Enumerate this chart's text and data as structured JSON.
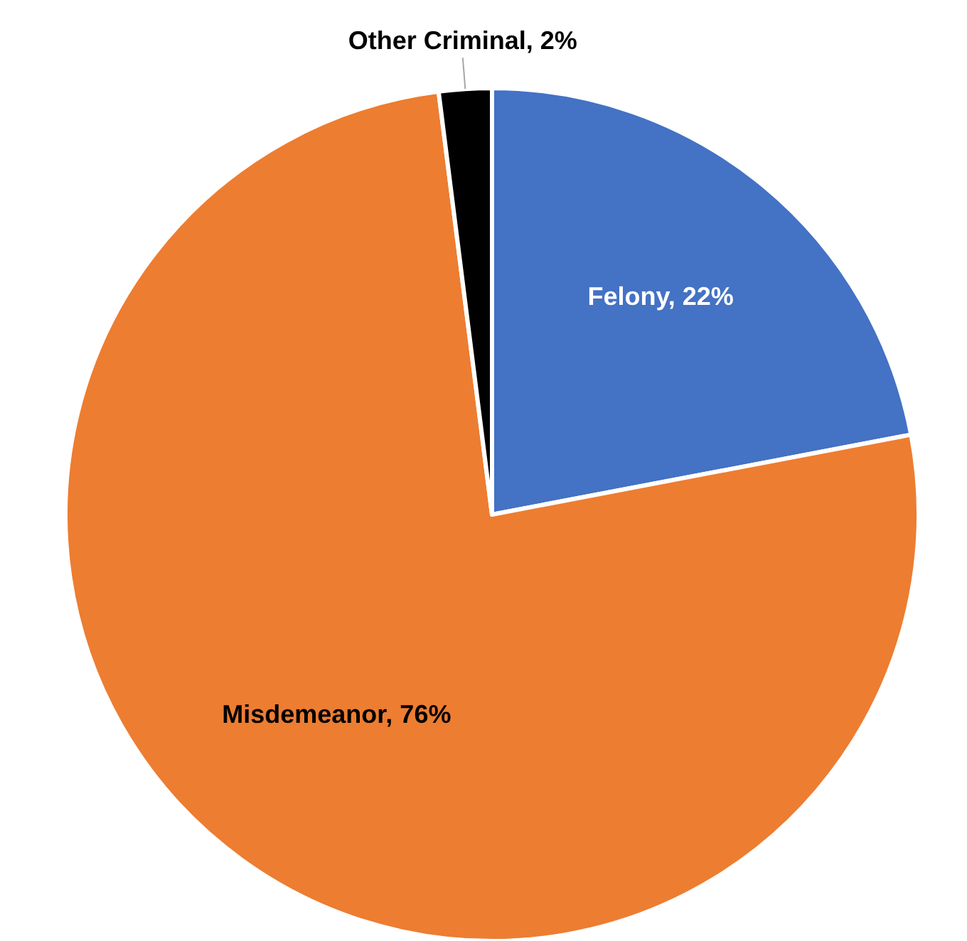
{
  "chart_data": {
    "type": "pie",
    "categories": [
      "Felony",
      "Misdemeanor",
      "Other Criminal"
    ],
    "values": [
      22,
      76,
      2
    ],
    "colors": [
      "#4472c4",
      "#ed7d31",
      "#000000"
    ],
    "value_labels": [
      "22%",
      "76%",
      "2%"
    ]
  }
}
